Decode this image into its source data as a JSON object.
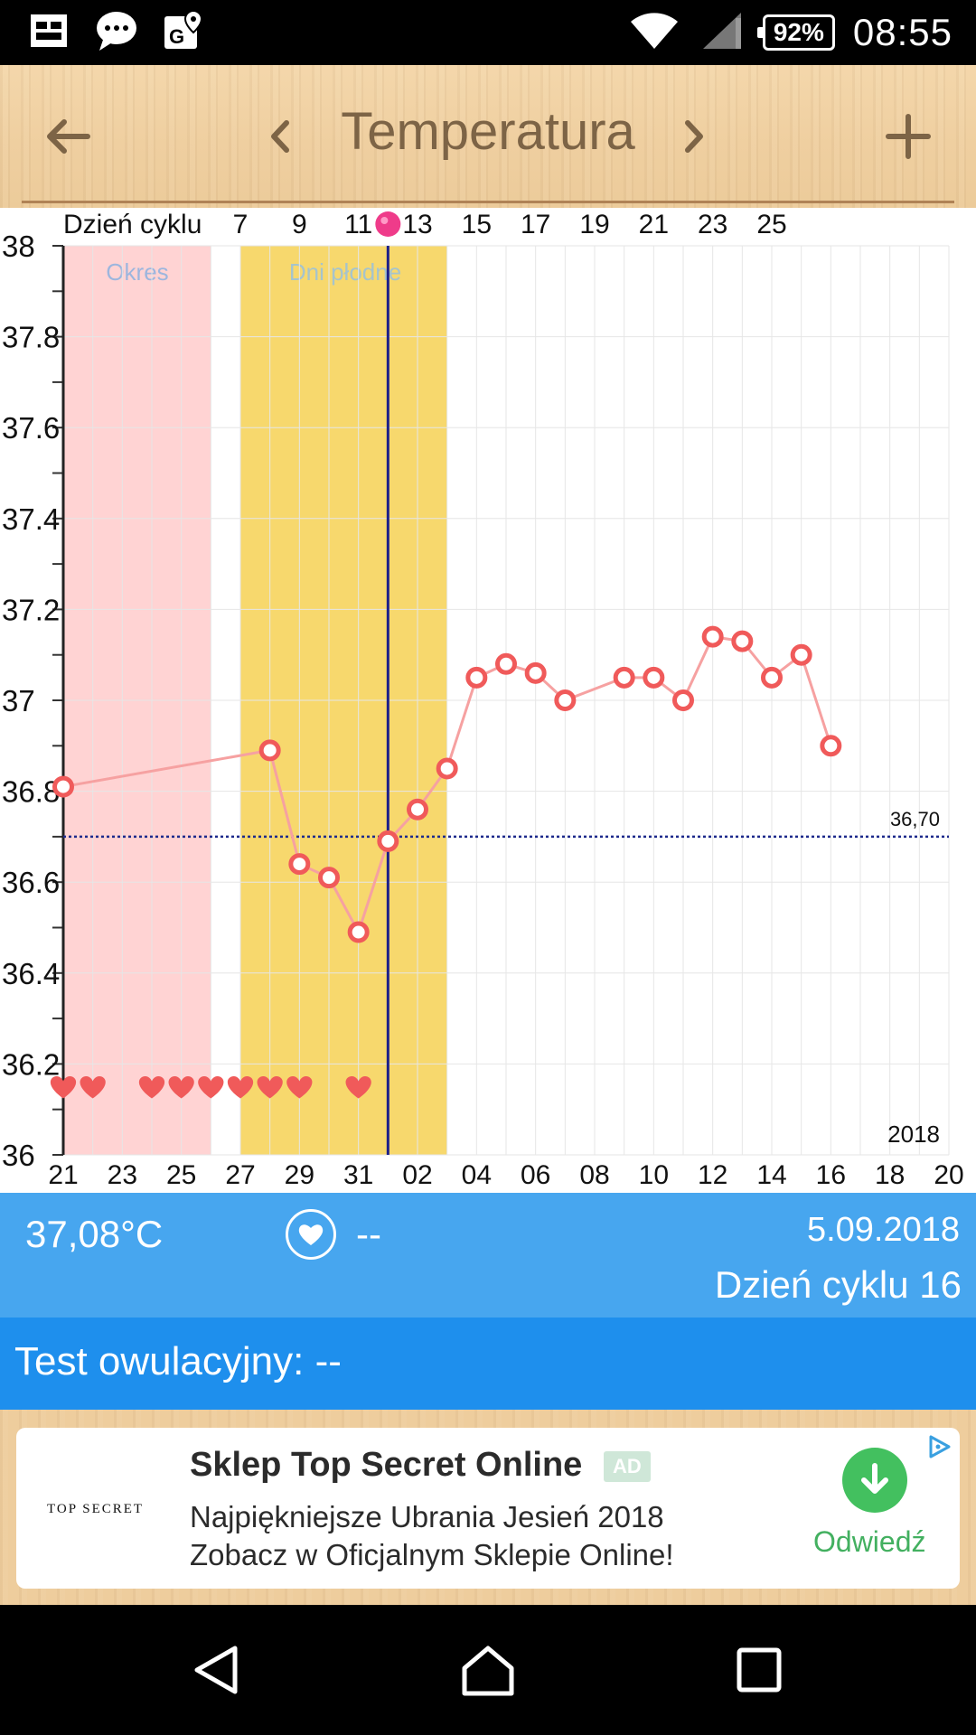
{
  "status_bar": {
    "icons": [
      "sim-icon",
      "message-icon",
      "maps-icon",
      "wifi-icon",
      "signal-icon"
    ],
    "battery": "92%",
    "time": "08:55"
  },
  "toolbar": {
    "title": "Temperatura",
    "back_icon": "arrow-left-icon",
    "prev_icon": "chevron-left-icon",
    "next_icon": "chevron-right-icon",
    "add_icon": "plus-icon"
  },
  "chart_data": {
    "type": "line",
    "top_axis_label": "Dzień cyklu",
    "top_ticks": [
      "7",
      "9",
      "11",
      "13",
      "15",
      "17",
      "19",
      "21",
      "23",
      "25"
    ],
    "x_ticks": [
      "21",
      "23",
      "25",
      "27",
      "29",
      "31",
      "02",
      "04",
      "06",
      "08",
      "10",
      "12",
      "14",
      "16",
      "18",
      "20"
    ],
    "y_ticks": [
      "36",
      "36.2",
      "36.4",
      "36.6",
      "36.8",
      "37",
      "37.2",
      "37.4",
      "37.6",
      "37.8",
      "38"
    ],
    "ylim": [
      36,
      38
    ],
    "year_label": "2018",
    "coverline": {
      "value": 36.7,
      "label": "36,70"
    },
    "bands": [
      {
        "label": "Okres",
        "from": "21",
        "to": "25/26",
        "color": "#ffd3d3"
      },
      {
        "label": "Dni płodne",
        "from": "27",
        "to": "03",
        "color": "#f7d86d"
      }
    ],
    "series": [
      {
        "color": "#f05a5a",
        "points": [
          {
            "x": "21",
            "y": 36.81
          },
          {
            "x": "28",
            "y": 36.89
          },
          {
            "x": "29",
            "y": 36.64
          },
          {
            "x": "30",
            "y": 36.61
          },
          {
            "x": "31",
            "y": 36.49
          },
          {
            "x": "01",
            "y": 36.69
          },
          {
            "x": "02",
            "y": 36.76
          },
          {
            "x": "03",
            "y": 36.85
          },
          {
            "x": "04",
            "y": 37.05
          },
          {
            "x": "05",
            "y": 37.08
          },
          {
            "x": "06",
            "y": 37.06
          },
          {
            "x": "07",
            "y": 37.0
          },
          {
            "x": "09",
            "y": 37.05
          },
          {
            "x": "10",
            "y": 37.05
          },
          {
            "x": "11",
            "y": 37.0
          },
          {
            "x": "12",
            "y": 37.14
          },
          {
            "x": "13",
            "y": 37.13
          },
          {
            "x": "14",
            "y": 37.05
          },
          {
            "x": "15",
            "y": 37.1
          },
          {
            "x": "16",
            "y": 36.9
          }
        ]
      }
    ],
    "heart_days": [
      "21",
      "22",
      "24",
      "25",
      "26",
      "27",
      "28",
      "29",
      "31"
    ],
    "selected_day": "01"
  },
  "info": {
    "temperature": "37,08°C",
    "sex_value": "--",
    "date": "5.09.2018",
    "cycle_day": "Dzień cyklu 16"
  },
  "ovulation": {
    "label": "Test owulacyjny: --"
  },
  "ad": {
    "logo": "TOP SECRET",
    "title": "Sklep Top Secret Online",
    "badge": "AD",
    "line1": "Najpiękniejsze Ubrania Jesień 2018",
    "line2": "Zobacz w Oficjalnym Sklepie Online!",
    "cta": "Odwiedź"
  },
  "nav": {
    "back": "back-icon",
    "home": "home-icon",
    "recents": "recents-icon"
  }
}
